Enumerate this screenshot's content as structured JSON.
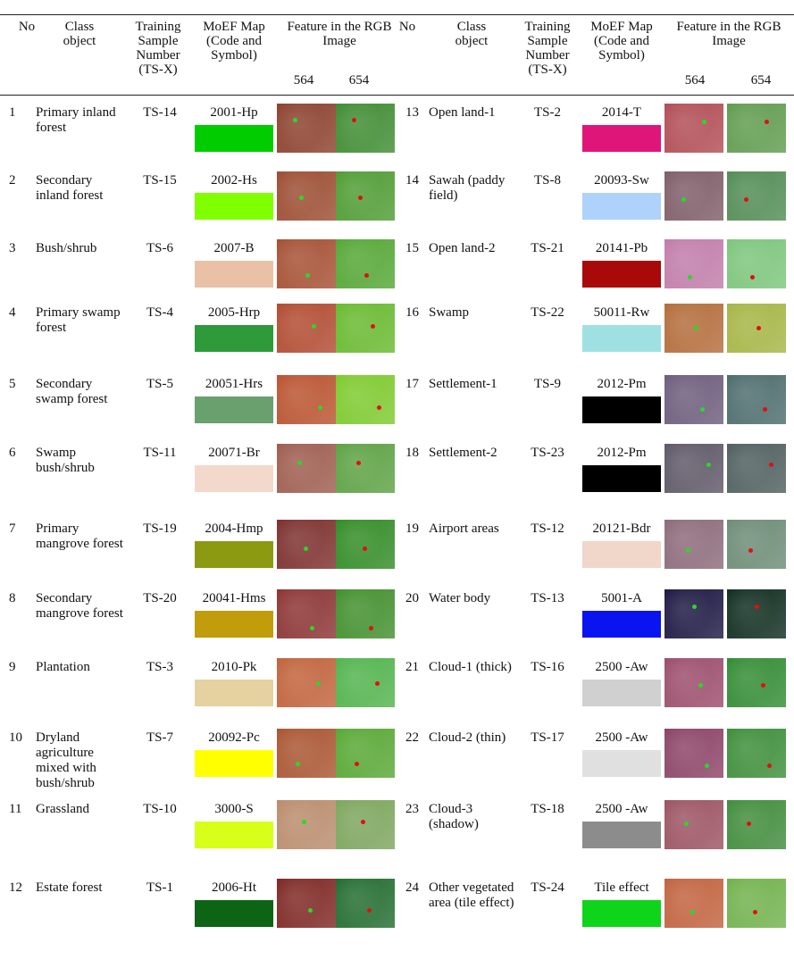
{
  "headers": {
    "no": "No",
    "class_object": "Class object",
    "training": "Training Sample Number (TS-X)",
    "moef": "MoEF Map (Code and Symbol)",
    "feature_left": "Feature in the RGB Image",
    "feature_right": "Feature in the RGB Image",
    "band_564": "564",
    "band_654": "654"
  },
  "rows": [
    {
      "no": "1",
      "cls": "Primary inland forest",
      "ts": "TS-14",
      "code": "2001-Hp",
      "color": "#00cc00",
      "img": "forest"
    },
    {
      "no": "2",
      "cls": "Secondary inland forest",
      "ts": "TS-15",
      "code": "2002-Hs",
      "color": "#80ff00",
      "img": "forest2"
    },
    {
      "no": "3",
      "cls": "Bush/shrub",
      "ts": "TS-6",
      "code": "2007-B",
      "color": "#e9c1a7",
      "img": "bush"
    },
    {
      "no": "4",
      "cls": "Primary swamp forest",
      "ts": "TS-4",
      "code": "2005-Hrp",
      "color": "#2e9a3a",
      "img": "swamp"
    },
    {
      "no": "5",
      "cls": "Secondary swamp forest",
      "ts": "TS-5",
      "code": "20051-Hrs",
      "color": "#6aa06e",
      "img": "swamp2"
    },
    {
      "no": "6",
      "cls": "Swamp bush/shrub",
      "ts": "TS-11",
      "code": "20071-Br",
      "color": "#f3d8cc",
      "img": "swampbush"
    },
    {
      "no": "7",
      "cls": "Primary mangrove forest",
      "ts": "TS-19",
      "code": "2004-Hmp",
      "color": "#8c9a12",
      "img": "mangrove"
    },
    {
      "no": "8",
      "cls": "Secondary mangrove forest",
      "ts": "TS-20",
      "code": "20041-Hms",
      "color": "#c19c0b",
      "img": "mangrove2"
    },
    {
      "no": "9",
      "cls": "Plantation",
      "ts": "TS-3",
      "code": "2010-Pk",
      "color": "#e6d1a0",
      "img": "plantation"
    },
    {
      "no": "10",
      "cls": "Dryland agriculture mixed with bush/shrub",
      "ts": "TS-7",
      "code": "20092-Pc",
      "color": "#ffff00",
      "img": "dryland"
    },
    {
      "no": "11",
      "cls": "Grassland",
      "ts": "TS-10",
      "code": "3000-S",
      "color": "#d7ff1a",
      "img": "grass"
    },
    {
      "no": "12",
      "cls": "Estate forest",
      "ts": "TS-1",
      "code": "2006-Ht",
      "color": "#0c6414",
      "img": "estate"
    }
  ],
  "rows_right": [
    {
      "no": "13",
      "cls": "Open land-1",
      "ts": "TS-2",
      "code": "2014-T",
      "color": "#e0157a",
      "img": "open"
    },
    {
      "no": "14",
      "cls": "Sawah (paddy field)",
      "ts": "TS-8",
      "code": "20093-Sw",
      "color": "#aed2fb",
      "img": "sawah"
    },
    {
      "no": "15",
      "cls": "Open land-2",
      "ts": "TS-21",
      "code": "20141-Pb",
      "color": "#a80909",
      "img": "open2"
    },
    {
      "no": "16",
      "cls": "Swamp",
      "ts": "TS-22",
      "code": "50011-Rw",
      "color": "#9fe1e3",
      "img": "swampr"
    },
    {
      "no": "17",
      "cls": "Settlement-1",
      "ts": "TS-9",
      "code": "2012-Pm",
      "color": "#000000",
      "img": "settle"
    },
    {
      "no": "18",
      "cls": "Settlement-2",
      "ts": "TS-23",
      "code": "2012-Pm",
      "color": "#000000",
      "img": "settle2"
    },
    {
      "no": "19",
      "cls": "Airport areas",
      "ts": "TS-12",
      "code": "20121-Bdr",
      "color": "#f1d6ca",
      "img": "airport"
    },
    {
      "no": "20",
      "cls": "Water body",
      "ts": "TS-13",
      "code": "5001-A",
      "color": "#0a14f0",
      "img": "water"
    },
    {
      "no": "21",
      "cls": "Cloud-1 (thick)",
      "ts": "TS-16",
      "code": "2500 -Aw",
      "color": "#d0d0d0",
      "img": "cloud"
    },
    {
      "no": "22",
      "cls": "Cloud-2 (thin)",
      "ts": "TS-17",
      "code": "2500 -Aw",
      "color": "#e0e0e0",
      "img": "cloud2"
    },
    {
      "no": "23",
      "cls": "Cloud-3 (shadow)",
      "ts": "TS-18",
      "code": "2500 -Aw",
      "color": "#8c8c8c",
      "img": "cloud3"
    },
    {
      "no": "24",
      "cls": "Other vegetated area (tile effect)",
      "ts": "TS-24",
      "code": "Tile effect",
      "color": "#0ed41a",
      "img": "tile"
    }
  ]
}
